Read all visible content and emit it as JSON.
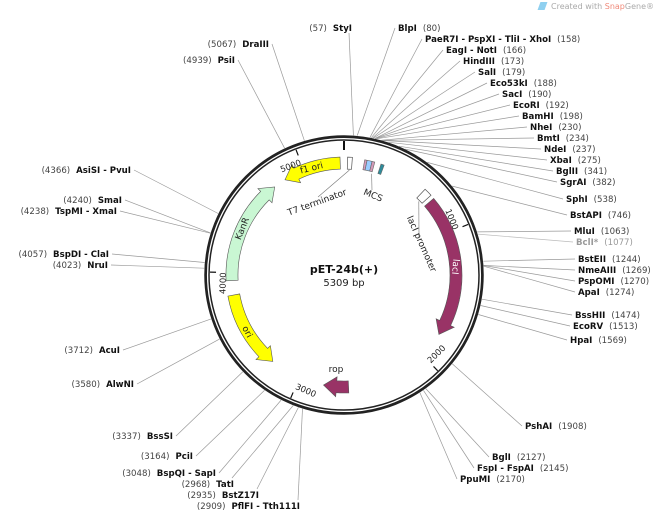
{
  "watermark": {
    "prefix": "Created with ",
    "brand_a": "Snap",
    "brand_b": "Gene®"
  },
  "plasmid": {
    "name": "pET-24b(+)",
    "size_label": "5309 bp",
    "length": 5309
  },
  "ticks": [
    {
      "pos": 1000,
      "label": "1000"
    },
    {
      "pos": 2000,
      "label": "2000"
    },
    {
      "pos": 3000,
      "label": "3000"
    },
    {
      "pos": 4000,
      "label": "4000"
    },
    {
      "pos": 5000,
      "label": "5000"
    }
  ],
  "features": [
    {
      "name": "f1 ori",
      "start": 4840,
      "end": 5280,
      "direction": "reverse",
      "color": "#ffff00"
    },
    {
      "name": "KanR",
      "start": 3940,
      "end": 4745,
      "direction": "forward",
      "color": "#c9f7d3"
    },
    {
      "name": "ori",
      "start": 3237,
      "end": 3830,
      "direction": "reverse",
      "color": "#ffff00"
    },
    {
      "name": "rop",
      "start": 2620,
      "end": 2810,
      "direction": "forward",
      "color": "#993366"
    },
    {
      "name": "lacI",
      "start": 730,
      "end": 1800,
      "direction": "forward",
      "color": "#993366"
    },
    {
      "name": "lacI promoter",
      "start": 640,
      "end": 700,
      "direction": "none",
      "color": "#ffffff"
    },
    {
      "name": "T7 terminator",
      "start": 26,
      "end": 60,
      "direction": "none",
      "color": "#ffffff"
    },
    {
      "name": "MCS",
      "start": 150,
      "end": 300,
      "direction": "none",
      "color": "#ffffff",
      "parts": [
        {
          "start": 150,
          "end": 168,
          "color": "#d49ab8"
        },
        {
          "start": 168,
          "end": 205,
          "color": "#99ccff"
        },
        {
          "start": 205,
          "end": 225,
          "color": "#d49ab8"
        },
        {
          "start": 272,
          "end": 296,
          "color": "#2e8b9a"
        }
      ]
    }
  ],
  "enzymes": [
    {
      "name": "StyI",
      "pos": 57
    },
    {
      "name": "BlpI",
      "pos": 80
    },
    {
      "name": "PaeR7I - PspXI - TliI - XhoI",
      "pos": 158
    },
    {
      "name": "EagI - NotI",
      "pos": 166
    },
    {
      "name": "HindIII",
      "pos": 173
    },
    {
      "name": "SalI",
      "pos": 179
    },
    {
      "name": "Eco53kI",
      "pos": 188
    },
    {
      "name": "SacI",
      "pos": 190
    },
    {
      "name": "EcoRI",
      "pos": 192
    },
    {
      "name": "BamHI",
      "pos": 198
    },
    {
      "name": "NheI",
      "pos": 230
    },
    {
      "name": "BmtI",
      "pos": 234
    },
    {
      "name": "NdeI",
      "pos": 237
    },
    {
      "name": "XbaI",
      "pos": 275
    },
    {
      "name": "BglII",
      "pos": 341
    },
    {
      "name": "SgrAI",
      "pos": 382
    },
    {
      "name": "SphI",
      "pos": 538
    },
    {
      "name": "BstAPI",
      "pos": 746
    },
    {
      "name": "MluI",
      "pos": 1063
    },
    {
      "name": "BclI*",
      "pos": 1077,
      "blocked": true
    },
    {
      "name": "BstEII",
      "pos": 1244
    },
    {
      "name": "NmeAIII",
      "pos": 1269
    },
    {
      "name": "PspOMI",
      "pos": 1270
    },
    {
      "name": "ApaI",
      "pos": 1274
    },
    {
      "name": "BssHII",
      "pos": 1474
    },
    {
      "name": "EcoRV",
      "pos": 1513
    },
    {
      "name": "HpaI",
      "pos": 1569
    },
    {
      "name": "PshAI",
      "pos": 1908
    },
    {
      "name": "BglI",
      "pos": 2127
    },
    {
      "name": "FspI - FspAI",
      "pos": 2145
    },
    {
      "name": "PpuMI",
      "pos": 2170
    },
    {
      "name": "PflFI - Tth111I",
      "pos": 2909
    },
    {
      "name": "BstZ17I",
      "pos": 2935
    },
    {
      "name": "TatI",
      "pos": 2968
    },
    {
      "name": "BspQI - SapI",
      "pos": 3048
    },
    {
      "name": "PciI",
      "pos": 3164
    },
    {
      "name": "BssSI",
      "pos": 3337
    },
    {
      "name": "AlwNI",
      "pos": 3580
    },
    {
      "name": "AcuI",
      "pos": 3712
    },
    {
      "name": "NruI",
      "pos": 4023
    },
    {
      "name": "BspDI - ClaI",
      "pos": 4057
    },
    {
      "name": "TspMI - XmaI",
      "pos": 4238
    },
    {
      "name": "SmaI",
      "pos": 4240
    },
    {
      "name": "AsiSI - PvuI",
      "pos": 4366
    },
    {
      "name": "PsiI",
      "pos": 4939
    },
    {
      "name": "DraIII",
      "pos": 5067
    }
  ]
}
